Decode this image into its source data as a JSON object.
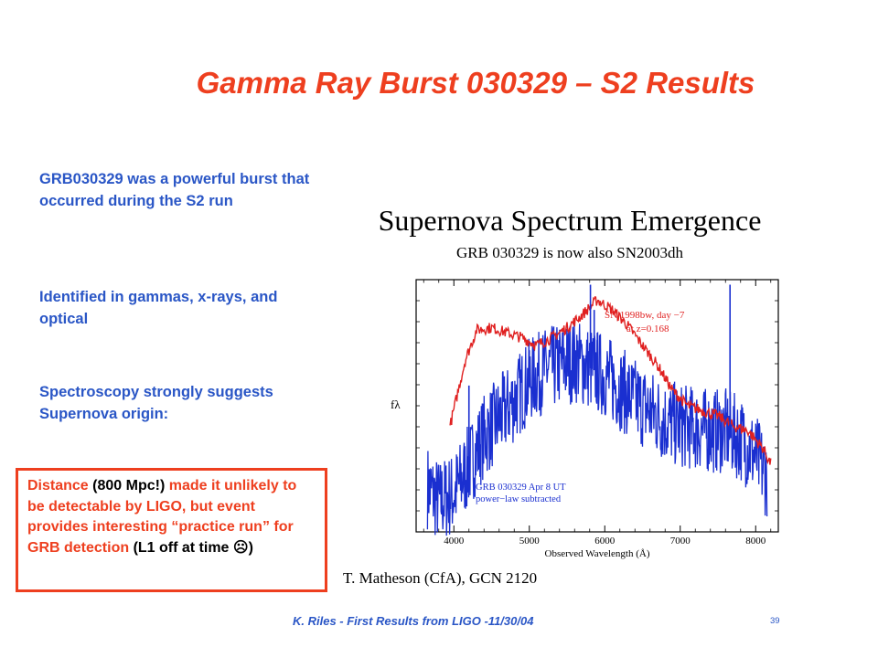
{
  "slide": {
    "title": "Gamma Ray Burst 030329 – S2 Results",
    "bullets": [
      "GRB030329 was a powerful burst that occurred during the S2 run",
      "Identified in gammas, x-rays, and optical",
      "Spectroscopy strongly suggests Supernova origin:"
    ],
    "note": {
      "p1": "Distance ",
      "p2": "(800 Mpc!)",
      "p3": " made it unlikely to be detectable by LIGO, but event provides interesting “practice run” for GRB detection ",
      "p4": "(L1 off at time ☹)"
    },
    "footer": "K. Riles - First Results from LIGO -11/30/04",
    "page_number": "39"
  },
  "figure": {
    "title": "Supernova Spectrum Emergence",
    "subtitle": "GRB 030329 is now also SN2003dh",
    "ylabel": "fλ",
    "red_label_1": "SN 1998bw, day −7",
    "red_label_2": "at z=0.168",
    "blue_label_1": "GRB 030329 Apr 8 UT",
    "blue_label_2": "power−law subtracted",
    "credit": "T. Matheson (CfA), GCN 2120",
    "colors": {
      "red": "#e02020",
      "blue": "#1a2fd0"
    }
  },
  "chart_data": {
    "type": "line",
    "xlabel": "Observed Wavelength (Å)",
    "ylabel": "fλ",
    "xlim": [
      3500,
      8300
    ],
    "xticks": [
      4000,
      5000,
      6000,
      7000,
      8000
    ],
    "series": [
      {
        "name": "SN 1998bw, day −7 at z=0.168",
        "color": "#e02020",
        "x": [
          3950,
          4050,
          4150,
          4300,
          4500,
          4700,
          4900,
          5100,
          5300,
          5500,
          5700,
          5900,
          6100,
          6300,
          6500,
          6700,
          6900,
          7100,
          7300,
          7500,
          7700,
          7900,
          8100,
          8200
        ],
        "y": [
          0.42,
          0.55,
          0.68,
          0.8,
          0.81,
          0.79,
          0.77,
          0.74,
          0.77,
          0.81,
          0.86,
          0.92,
          0.88,
          0.82,
          0.74,
          0.66,
          0.56,
          0.5,
          0.48,
          0.46,
          0.42,
          0.4,
          0.33,
          0.27
        ]
      },
      {
        "name": "GRB 030329 Apr 8 UT power−law subtracted",
        "color": "#1a2fd0",
        "x": [
          3650,
          3800,
          4000,
          4200,
          4400,
          4600,
          4800,
          5000,
          5200,
          5400,
          5600,
          5800,
          6000,
          6200,
          6400,
          6600,
          6800,
          7000,
          7200,
          7400,
          7600,
          7800,
          8000,
          8150
        ],
        "y": [
          0.18,
          0.12,
          0.15,
          0.26,
          0.38,
          0.45,
          0.52,
          0.6,
          0.64,
          0.66,
          0.68,
          0.65,
          0.62,
          0.57,
          0.52,
          0.48,
          0.44,
          0.42,
          0.41,
          0.4,
          0.4,
          0.37,
          0.3,
          0.22
        ]
      }
    ]
  }
}
